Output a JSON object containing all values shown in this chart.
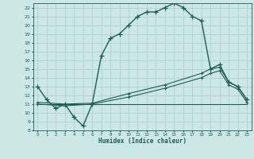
{
  "xlabel": "Humidex (Indice chaleur)",
  "bg_color": "#cce8e5",
  "line_color": "#1e5c50",
  "grid_color": "#aacfcc",
  "xlim": [
    -0.5,
    23.5
  ],
  "ylim": [
    8,
    22.5
  ],
  "xticks": [
    0,
    1,
    2,
    3,
    4,
    5,
    6,
    7,
    8,
    9,
    10,
    11,
    12,
    13,
    14,
    15,
    16,
    17,
    18,
    19,
    20,
    21,
    22,
    23
  ],
  "yticks": [
    8,
    9,
    10,
    11,
    12,
    13,
    14,
    15,
    16,
    17,
    18,
    19,
    20,
    21,
    22
  ],
  "curve1_x": [
    0,
    1,
    2,
    3,
    4,
    5,
    6,
    7,
    8,
    9,
    10,
    11,
    12,
    13,
    14,
    15,
    16,
    17,
    18,
    19,
    20,
    21,
    22,
    23
  ],
  "curve1_y": [
    13.0,
    11.5,
    10.5,
    11.0,
    9.5,
    8.5,
    11.0,
    16.5,
    18.5,
    19.0,
    20.0,
    21.0,
    21.5,
    21.5,
    22.0,
    22.5,
    22.0,
    21.0,
    20.5,
    15.0,
    15.5,
    13.5,
    13.0,
    11.5
  ],
  "curve2_x": [
    0,
    3,
    6,
    10,
    14,
    18,
    19,
    20,
    21,
    22,
    23
  ],
  "curve2_y": [
    11.2,
    11.0,
    11.1,
    12.2,
    13.2,
    14.5,
    15.0,
    15.2,
    13.5,
    13.0,
    11.5
  ],
  "curve3_x": [
    0,
    3,
    6,
    10,
    14,
    18,
    19,
    20,
    21,
    22,
    23
  ],
  "curve3_y": [
    11.0,
    10.8,
    11.0,
    11.8,
    12.8,
    14.0,
    14.5,
    14.8,
    13.2,
    12.7,
    11.2
  ],
  "flat_line_x": [
    0,
    23
  ],
  "flat_line_y": [
    11.0,
    11.0
  ]
}
